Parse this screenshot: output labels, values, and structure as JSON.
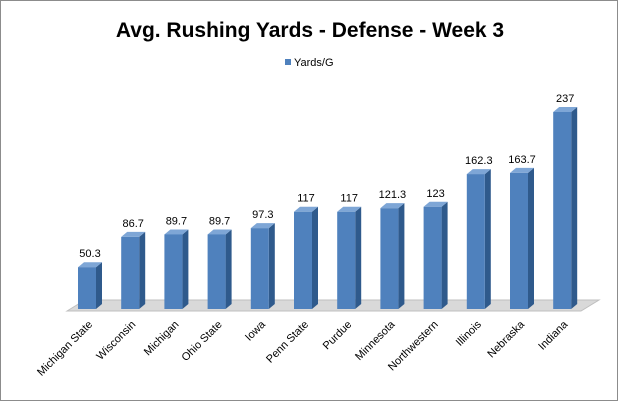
{
  "chart_data": {
    "type": "bar",
    "title": "Avg. Rushing Yards - Defense - Week 3",
    "xlabel": "",
    "ylabel": "",
    "legend": {
      "position": "top",
      "entries": [
        "Yards/G"
      ]
    },
    "grid": false,
    "ylim": [
      0,
      237
    ],
    "colors": {
      "bar_front": "#4f81bd",
      "bar_side": "#2f5a8c",
      "bar_top": "#7ea6d6",
      "floor": "#d9d9d9"
    },
    "categories": [
      "Michigan State",
      "Wisconsin",
      "Michigan",
      "Ohio State",
      "Iowa",
      "Penn State",
      "Purdue",
      "Minnesota",
      "Northwestern",
      "Illinois",
      "Nebraska",
      "Indiana"
    ],
    "series": [
      {
        "name": "Yards/G",
        "values": [
          50.3,
          86.7,
          89.7,
          89.7,
          97.3,
          117,
          117,
          121.3,
          123,
          162.3,
          163.7,
          237
        ],
        "labels": [
          "50.3",
          "86.7",
          "89.7",
          "89.7",
          "97.3",
          "117",
          "117",
          "121.3",
          "123",
          "162.3",
          "163.7",
          "237"
        ]
      }
    ]
  }
}
